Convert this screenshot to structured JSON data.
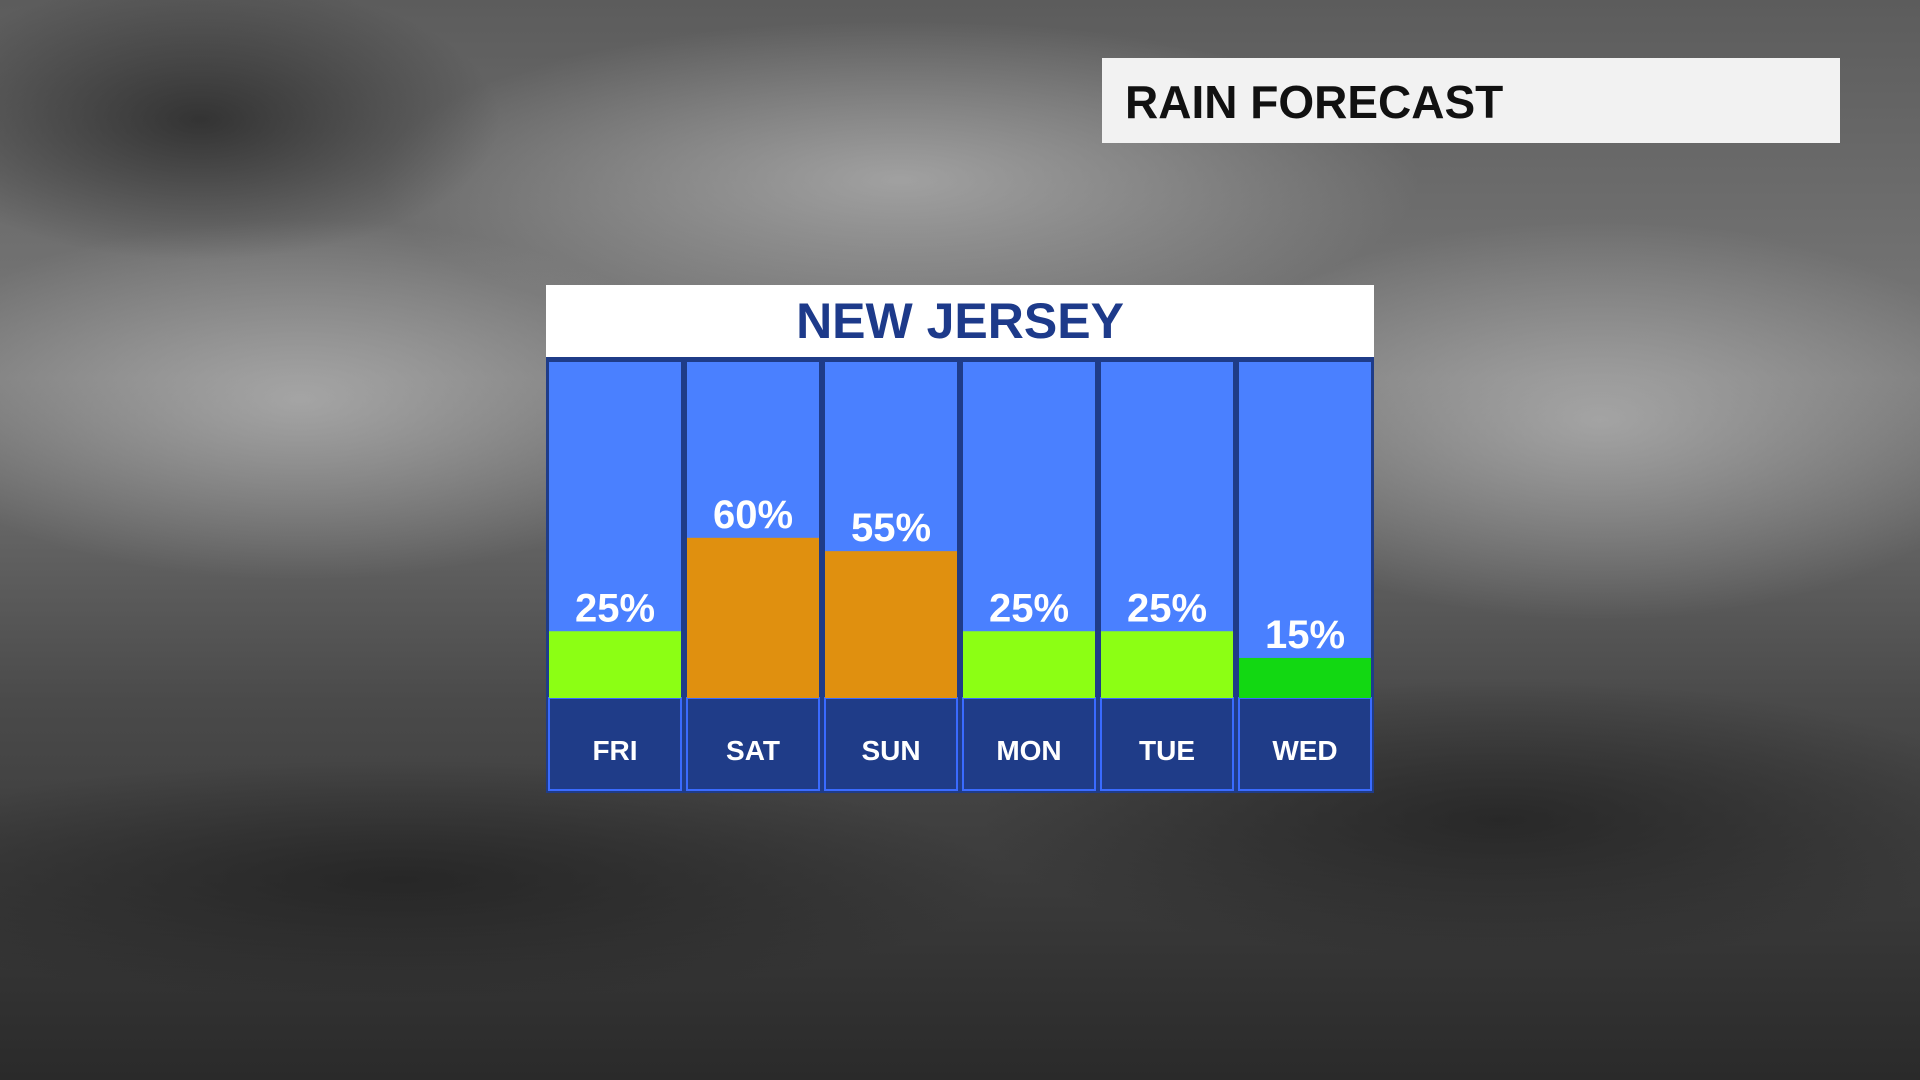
{
  "chart_data": {
    "type": "bar",
    "title": "RAIN FORECAST",
    "subtitle": "NEW JERSEY",
    "categories": [
      "FRI",
      "SAT",
      "SUN",
      "MON",
      "TUE",
      "WED"
    ],
    "values": [
      25,
      60,
      55,
      25,
      25,
      15
    ],
    "value_labels": [
      "25%",
      "60%",
      "55%",
      "25%",
      "25%",
      "15%"
    ],
    "colors": [
      "#8cff14",
      "#e0900f",
      "#e0900f",
      "#8cff14",
      "#8cff14",
      "#12d812"
    ]
  }
}
